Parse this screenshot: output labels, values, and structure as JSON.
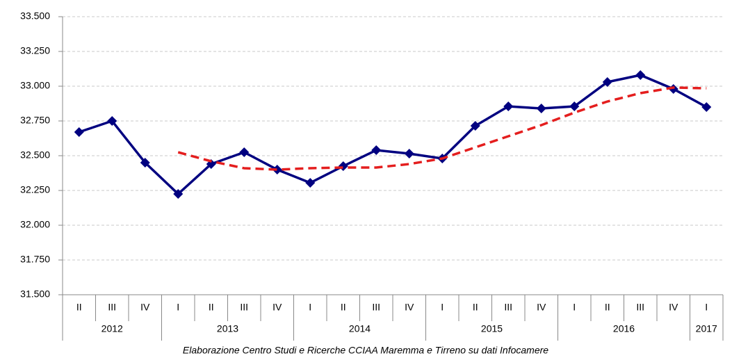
{
  "chart_data": {
    "type": "line",
    "categories": [
      "II",
      "III",
      "IV",
      "I",
      "II",
      "III",
      "IV",
      "I",
      "II",
      "III",
      "IV",
      "I",
      "II",
      "III",
      "IV",
      "I",
      "II",
      "III",
      "IV",
      "I"
    ],
    "years": [
      "2012",
      "2012",
      "2012",
      "2013",
      "2013",
      "2013",
      "2013",
      "2014",
      "2014",
      "2014",
      "2014",
      "2015",
      "2015",
      "2015",
      "2015",
      "2016",
      "2016",
      "2016",
      "2016",
      "2017"
    ],
    "series": [
      {
        "color": "#000080",
        "dash": false,
        "markers": true,
        "values": [
          32.67,
          32.75,
          32.45,
          32.225,
          32.44,
          32.525,
          32.4,
          32.305,
          32.425,
          32.54,
          32.515,
          32.48,
          32.715,
          32.855,
          32.84,
          32.855,
          33.03,
          33.08,
          32.98,
          32.85
        ]
      },
      {
        "color": "#e41e1e",
        "dash": true,
        "markers": false,
        "values": [
          null,
          null,
          null,
          32.525,
          32.46,
          32.41,
          32.4,
          32.41,
          32.415,
          32.415,
          32.44,
          32.48,
          32.56,
          32.64,
          32.72,
          32.81,
          32.89,
          32.95,
          32.99,
          32.985
        ]
      }
    ],
    "ylim": [
      31.5,
      33.5
    ],
    "yticks": [
      {
        "value": 31.5,
        "label": "31.500"
      },
      {
        "value": 31.75,
        "label": "31.750"
      },
      {
        "value": 32,
        "label": "32.000"
      },
      {
        "value": 32.25,
        "label": "32.250"
      },
      {
        "value": 32.5,
        "label": "32.500"
      },
      {
        "value": 32.75,
        "label": "32.750"
      },
      {
        "value": 33,
        "label": "33.000"
      },
      {
        "value": 33.25,
        "label": "33.250"
      },
      {
        "value": 33.5,
        "label": "33.500"
      }
    ],
    "grid": true,
    "caption": "Elaborazione Centro Studi e Ricerche CCIAA Maremma e Tirreno su dati Infocamere"
  }
}
